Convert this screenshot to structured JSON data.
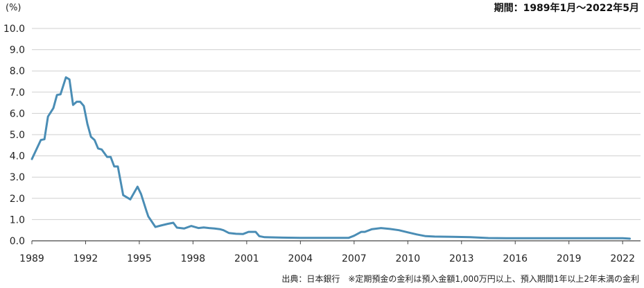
{
  "chart_data": {
    "type": "line",
    "unit_label": "(%)",
    "period_label": "期間：1989年1月〜2022年5月",
    "source_label": "出典：日本銀行　※定期預金の金利は預入金額1,000万円以上、預入期間1年以上2年未満の金利",
    "ylim": [
      0,
      10
    ],
    "y_ticks": [
      "0.0",
      "1.0",
      "2.0",
      "3.0",
      "4.0",
      "5.0",
      "6.0",
      "7.0",
      "8.0",
      "9.0",
      "10.0"
    ],
    "x_ticks": [
      "1989",
      "1992",
      "1995",
      "1998",
      "2001",
      "2004",
      "2007",
      "2010",
      "2013",
      "2016",
      "2019",
      "2022"
    ],
    "xlim": [
      1989.0,
      2023.0
    ],
    "grid": true,
    "series_color": "#4a8db5",
    "series": [
      {
        "x": [
          1989.0,
          1989.5,
          1989.7,
          1989.9,
          1990.2,
          1990.4,
          1990.6,
          1990.9,
          1991.1,
          1991.3,
          1991.5,
          1991.7,
          1991.9,
          1992.1,
          1992.3,
          1992.5,
          1992.7,
          1992.9,
          1993.2,
          1993.4,
          1993.6,
          1993.8,
          1994.1,
          1994.5,
          1994.9,
          1995.1,
          1995.4,
          1995.5,
          1995.9,
          1996.2,
          1996.6,
          1996.9,
          1997.1,
          1997.5,
          1997.9,
          1998.3,
          1998.6,
          1998.9,
          1999.2,
          1999.5,
          1999.7,
          2000.0,
          2000.4,
          2000.8,
          2001.1,
          2001.5,
          2001.7,
          2002.0,
          2003.0,
          2004.0,
          2005.0,
          2006.0,
          2006.7,
          2007.0,
          2007.4,
          2007.6,
          2008.0,
          2008.5,
          2009.0,
          2009.5,
          2010.0,
          2010.5,
          2011.0,
          2011.5,
          2012.5,
          2013.5,
          2014.5,
          2015.5,
          2016.5,
          2017.5,
          2018.5,
          2019.5,
          2020.5,
          2021.0,
          2021.5,
          2022.0,
          2022.4
        ],
        "y": [
          3.85,
          4.75,
          4.78,
          5.85,
          6.25,
          6.87,
          6.9,
          7.7,
          7.6,
          6.4,
          6.55,
          6.55,
          6.35,
          5.5,
          4.9,
          4.75,
          4.35,
          4.3,
          3.95,
          3.95,
          3.5,
          3.5,
          2.15,
          1.95,
          2.55,
          2.2,
          1.4,
          1.15,
          0.65,
          0.72,
          0.8,
          0.85,
          0.62,
          0.58,
          0.7,
          0.6,
          0.63,
          0.6,
          0.58,
          0.55,
          0.5,
          0.37,
          0.33,
          0.32,
          0.42,
          0.42,
          0.22,
          0.17,
          0.15,
          0.14,
          0.14,
          0.14,
          0.14,
          0.24,
          0.42,
          0.42,
          0.55,
          0.6,
          0.56,
          0.5,
          0.4,
          0.3,
          0.22,
          0.2,
          0.19,
          0.17,
          0.13,
          0.12,
          0.12,
          0.12,
          0.12,
          0.12,
          0.12,
          0.12,
          0.12,
          0.12,
          0.1
        ]
      }
    ]
  }
}
